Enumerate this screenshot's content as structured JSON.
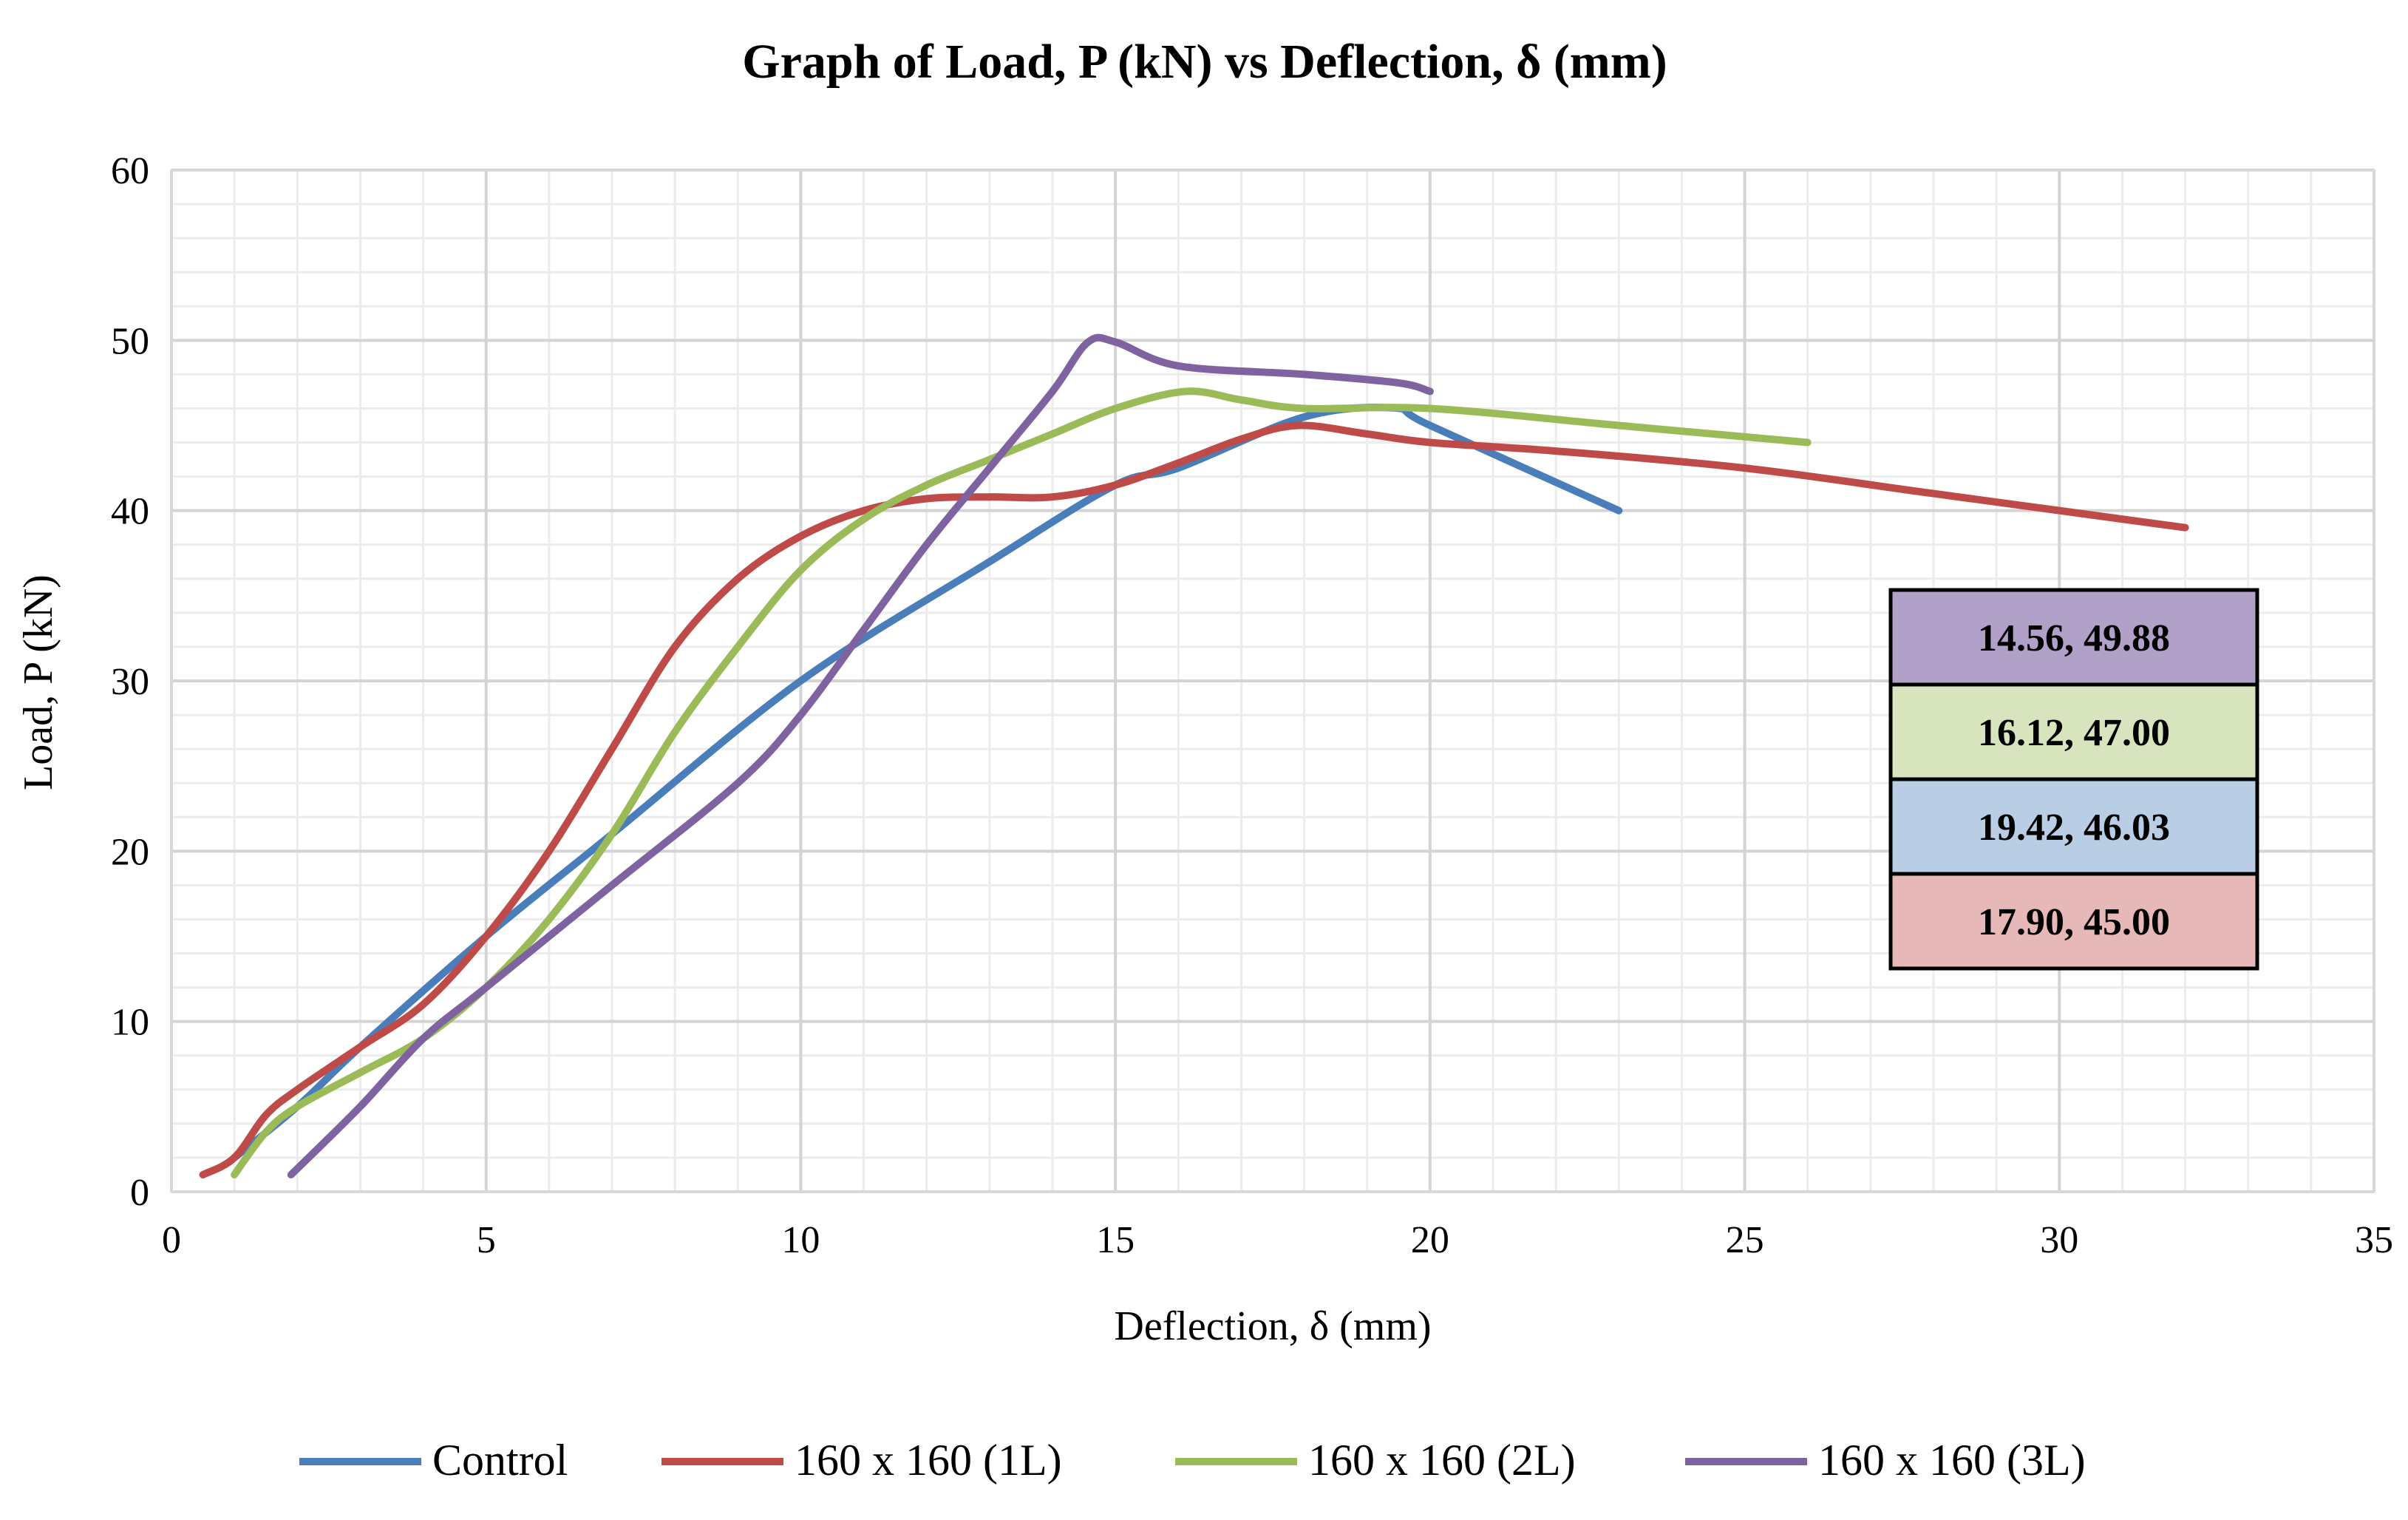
{
  "chart_data": {
    "type": "line",
    "title": "Graph of Load, P (kN) vs Deflection, δ (mm)",
    "xlabel": "Deflection, δ (mm)",
    "ylabel": "Load, P (kN)",
    "xlim": [
      0,
      35
    ],
    "ylim": [
      0,
      60
    ],
    "xticks": [
      0,
      5,
      10,
      15,
      20,
      25,
      30,
      35
    ],
    "yticks": [
      0,
      10,
      20,
      30,
      40,
      50,
      60
    ],
    "x_minor_step": 1,
    "y_minor_step": 2,
    "grid": true,
    "legend_position": "bottom",
    "series": [
      {
        "name": "Control",
        "color": "#4a7ebb",
        "points": [
          [
            1,
            2
          ],
          [
            2,
            5
          ],
          [
            3,
            8.5
          ],
          [
            5,
            15
          ],
          [
            7,
            21
          ],
          [
            10,
            30
          ],
          [
            13,
            37
          ],
          [
            15,
            41.5
          ],
          [
            16,
            42.5
          ],
          [
            18,
            45.5
          ],
          [
            19.42,
            46.03
          ],
          [
            20,
            45
          ],
          [
            23,
            40
          ]
        ]
      },
      {
        "name": "160 x 160 (1L)",
        "color": "#be4b48",
        "points": [
          [
            0.5,
            1
          ],
          [
            1,
            2
          ],
          [
            1.5,
            4.5
          ],
          [
            2,
            6
          ],
          [
            3,
            8.5
          ],
          [
            4,
            11
          ],
          [
            5,
            15
          ],
          [
            6,
            20
          ],
          [
            7,
            26
          ],
          [
            8,
            32
          ],
          [
            9,
            36
          ],
          [
            10,
            38.5
          ],
          [
            11,
            40
          ],
          [
            12,
            40.7
          ],
          [
            13,
            40.8
          ],
          [
            14,
            40.8
          ],
          [
            15,
            41.5
          ],
          [
            16,
            42.8
          ],
          [
            17,
            44.2
          ],
          [
            17.9,
            45
          ],
          [
            19,
            44.5
          ],
          [
            20,
            44
          ],
          [
            22,
            43.5
          ],
          [
            25,
            42.5
          ],
          [
            28,
            41
          ],
          [
            32,
            39
          ]
        ]
      },
      {
        "name": "160 x 160 (2L)",
        "color": "#9bbb59",
        "points": [
          [
            1,
            1
          ],
          [
            1.5,
            3.5
          ],
          [
            2,
            5
          ],
          [
            3,
            7
          ],
          [
            4,
            9
          ],
          [
            5,
            12
          ],
          [
            6,
            16
          ],
          [
            7,
            21
          ],
          [
            8,
            27
          ],
          [
            9,
            32
          ],
          [
            10,
            36.5
          ],
          [
            11,
            39.5
          ],
          [
            12,
            41.5
          ],
          [
            13,
            43
          ],
          [
            14,
            44.5
          ],
          [
            15,
            46
          ],
          [
            16.12,
            47
          ],
          [
            17,
            46.5
          ],
          [
            18,
            46
          ],
          [
            20,
            46
          ],
          [
            23,
            45
          ],
          [
            26,
            44
          ]
        ]
      },
      {
        "name": "160 x 160 (3L)",
        "color": "#7f63a1",
        "points": [
          [
            1.9,
            1
          ],
          [
            3,
            5
          ],
          [
            4,
            9
          ],
          [
            5,
            12
          ],
          [
            7,
            18
          ],
          [
            9,
            24
          ],
          [
            10,
            28
          ],
          [
            11,
            33
          ],
          [
            12,
            38
          ],
          [
            13,
            42.5
          ],
          [
            14,
            47
          ],
          [
            14.56,
            49.88
          ],
          [
            15,
            49.9
          ],
          [
            16,
            48.5
          ],
          [
            18,
            48
          ],
          [
            19.5,
            47.5
          ],
          [
            20,
            47
          ]
        ]
      }
    ],
    "annotations": [
      {
        "text": "14.56, 49.88",
        "fill": "#b1a0c7"
      },
      {
        "text": "16.12, 47.00",
        "fill": "#d7e4bd"
      },
      {
        "text": "19.42, 46.03",
        "fill": "#b9cde5"
      },
      {
        "text": "17.90, 45.00",
        "fill": "#e6b9b8"
      }
    ]
  }
}
